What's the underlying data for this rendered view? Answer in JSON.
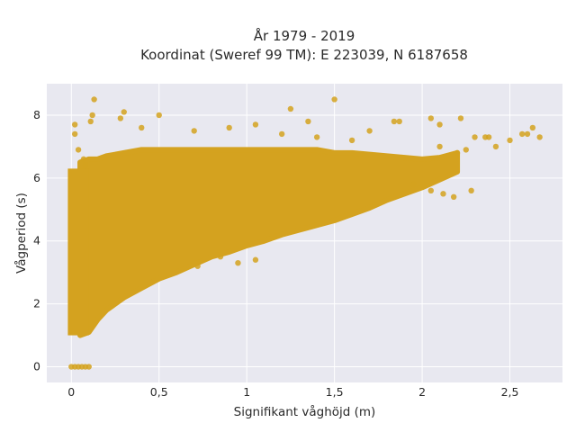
{
  "chart_data": {
    "type": "scatter",
    "title_lines": [
      "År 1979 - 2019",
      "Koordinat (Sweref 99 TM): E 223039, N 6187658"
    ],
    "xlabel": "Signifikant våghöjd (m)",
    "ylabel": "Vågperiod (s)",
    "xlim": [
      -0.14,
      2.8
    ],
    "ylim": [
      -0.5,
      9.0
    ],
    "xticks": [
      0,
      0.5,
      1,
      1.5,
      2,
      2.5
    ],
    "xtick_labels": [
      "0",
      "0,5",
      "1",
      "1,5",
      "2",
      "2,5"
    ],
    "yticks": [
      0,
      2,
      4,
      6,
      8
    ],
    "ytick_labels": [
      "0",
      "2",
      "4",
      "6",
      "8"
    ],
    "grid": true,
    "legend": "none",
    "colors": {
      "marker": "#d4a21f",
      "plot_bg": "#e8e8f0",
      "grid": "#ffffff"
    },
    "series": [
      {
        "density_summary": "dense band of observations from Hs 0-2.2 m; period upper bound rises from ~6.5 s to ~7 s; lower bound rises from ~1 s at Hs 0.05 m to ~5 s at Hs 1.6 m",
        "points": [
          [
            0.0,
            0.0
          ],
          [
            0.02,
            0.0
          ],
          [
            0.04,
            0.0
          ],
          [
            0.06,
            0.0
          ],
          [
            0.08,
            0.0
          ],
          [
            0.1,
            0.0
          ],
          [
            0.02,
            7.7
          ],
          [
            0.02,
            7.4
          ],
          [
            0.04,
            6.9
          ],
          [
            0.13,
            8.5
          ],
          [
            0.12,
            8.0
          ],
          [
            0.11,
            7.8
          ],
          [
            0.28,
            7.9
          ],
          [
            0.3,
            8.1
          ],
          [
            0.4,
            7.6
          ],
          [
            0.5,
            8.0
          ],
          [
            0.7,
            7.5
          ],
          [
            0.9,
            7.6
          ],
          [
            1.05,
            7.7
          ],
          [
            1.25,
            8.2
          ],
          [
            1.5,
            8.5
          ],
          [
            1.35,
            7.8
          ],
          [
            1.2,
            7.4
          ],
          [
            1.4,
            7.3
          ],
          [
            1.6,
            7.2
          ],
          [
            1.7,
            7.5
          ],
          [
            1.84,
            7.8
          ],
          [
            1.87,
            7.8
          ],
          [
            2.05,
            7.9
          ],
          [
            2.1,
            7.7
          ],
          [
            2.22,
            7.9
          ],
          [
            2.3,
            7.3
          ],
          [
            2.38,
            7.3
          ],
          [
            2.42,
            7.0
          ],
          [
            2.36,
            7.3
          ],
          [
            2.5,
            7.2
          ],
          [
            2.57,
            7.4
          ],
          [
            2.6,
            7.4
          ],
          [
            2.63,
            7.6
          ],
          [
            2.67,
            7.3
          ],
          [
            2.1,
            7.0
          ],
          [
            2.2,
            6.8
          ],
          [
            2.25,
            6.9
          ],
          [
            2.05,
            5.6
          ],
          [
            2.12,
            5.5
          ],
          [
            2.18,
            5.4
          ],
          [
            2.28,
            5.6
          ],
          [
            1.95,
            5.8
          ],
          [
            1.05,
            3.4
          ],
          [
            0.95,
            3.3
          ],
          [
            0.85,
            3.5
          ],
          [
            0.72,
            3.2
          ],
          [
            0.08,
            6.4
          ],
          [
            0.07,
            6.6
          ]
        ],
        "band": [
          [
            0.05,
            1.0,
            6.5
          ],
          [
            0.1,
            1.1,
            6.6
          ],
          [
            0.15,
            1.5,
            6.6
          ],
          [
            0.2,
            1.8,
            6.7
          ],
          [
            0.3,
            2.2,
            6.8
          ],
          [
            0.4,
            2.5,
            6.9
          ],
          [
            0.5,
            2.8,
            6.9
          ],
          [
            0.6,
            3.0,
            6.9
          ],
          [
            0.7,
            3.25,
            6.9
          ],
          [
            0.8,
            3.5,
            6.9
          ],
          [
            0.9,
            3.65,
            6.9
          ],
          [
            1.0,
            3.85,
            6.9
          ],
          [
            1.1,
            4.0,
            6.9
          ],
          [
            1.2,
            4.2,
            6.9
          ],
          [
            1.3,
            4.35,
            6.9
          ],
          [
            1.4,
            4.5,
            6.9
          ],
          [
            1.5,
            4.65,
            6.8
          ],
          [
            1.6,
            4.85,
            6.8
          ],
          [
            1.7,
            5.05,
            6.75
          ],
          [
            1.8,
            5.3,
            6.7
          ],
          [
            1.9,
            5.5,
            6.65
          ],
          [
            2.0,
            5.7,
            6.6
          ],
          [
            2.1,
            5.95,
            6.65
          ],
          [
            2.2,
            6.2,
            6.8
          ]
        ]
      }
    ]
  }
}
